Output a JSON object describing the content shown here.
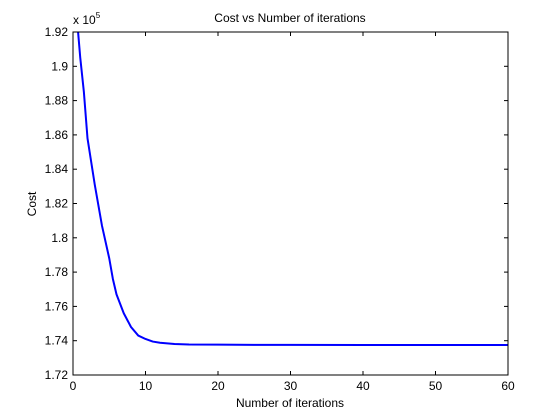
{
  "chart_data": {
    "type": "line",
    "title": "Cost vs Number of iterations",
    "xlabel": "Number of iterations",
    "ylabel": "Cost",
    "y_multiplier_base": "x 10",
    "y_multiplier_exp": "5",
    "xlim": [
      0,
      60
    ],
    "ylim": [
      1.72,
      1.92
    ],
    "x_ticks": [
      0,
      10,
      20,
      30,
      40,
      50,
      60
    ],
    "x_tick_labels": [
      "0",
      "10",
      "20",
      "30",
      "40",
      "50",
      "60"
    ],
    "y_ticks": [
      1.72,
      1.74,
      1.76,
      1.78,
      1.8,
      1.82,
      1.84,
      1.86,
      1.88,
      1.9,
      1.92
    ],
    "y_tick_labels": [
      "1.72",
      "1.74",
      "1.76",
      "1.78",
      "1.8",
      "1.82",
      "1.84",
      "1.86",
      "1.88",
      "1.9",
      "1.92"
    ],
    "grid": false,
    "series": [
      {
        "color": "#0000ff",
        "x": [
          0.7,
          1,
          1.5,
          2,
          3,
          4,
          5,
          5.5,
          6,
          7,
          8,
          9,
          10,
          11,
          12,
          14,
          16,
          20,
          25,
          30,
          40,
          50,
          60
        ],
        "y": [
          1.92,
          1.905,
          1.885,
          1.858,
          1.831,
          1.807,
          1.788,
          1.776,
          1.767,
          1.756,
          1.748,
          1.743,
          1.741,
          1.7395,
          1.7388,
          1.7381,
          1.7378,
          1.7377,
          1.7376,
          1.7376,
          1.7375,
          1.7375,
          1.7375
        ]
      }
    ]
  }
}
